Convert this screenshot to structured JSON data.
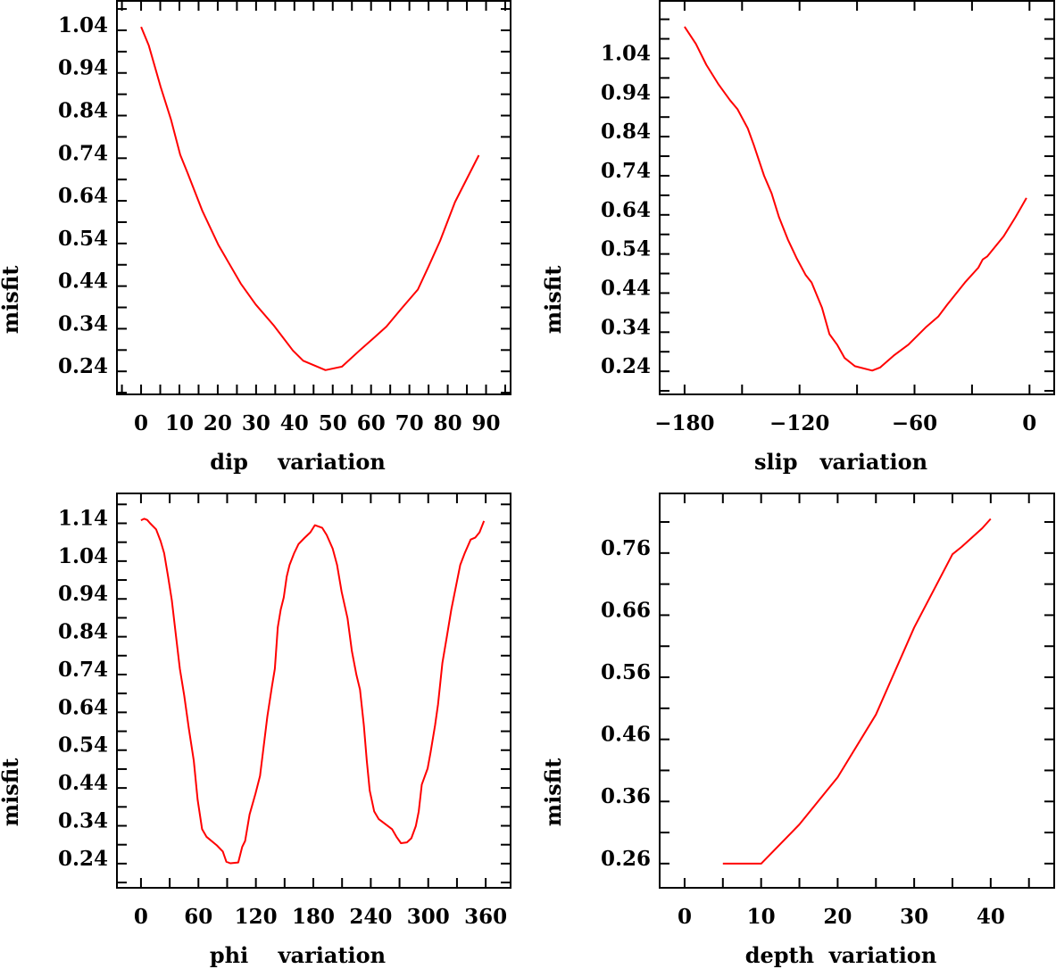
{
  "line_color": "#ff0000",
  "chart_data": [
    {
      "type": "line",
      "title": "",
      "xlabel": "dip    variation",
      "ylabel": "misfit",
      "xlim": [
        -6.3,
        96.4
      ],
      "ylim": [
        0.186,
        1.109
      ],
      "xticks": [
        0,
        10,
        20,
        30,
        40,
        50,
        60,
        70,
        80,
        90
      ],
      "xticklabels": [
        "0",
        "10",
        "20",
        "30",
        "40",
        "50",
        "60",
        "70",
        "80",
        "90"
      ],
      "xminor_step": 5,
      "yticks": [
        1.04,
        0.94,
        0.84,
        0.74,
        0.64,
        0.54,
        0.44,
        0.34,
        0.24
      ],
      "yticklabels": [
        "1.04",
        "0.94",
        "0.84",
        "0.74",
        "0.64",
        "0.54",
        "0.44",
        "0.34",
        "0.24"
      ],
      "yminor_step": 0.05,
      "grid": false,
      "x": [
        0,
        2,
        5.1,
        7.8,
        10.2,
        12.1,
        16,
        20.2,
        26,
        29.9,
        34.6,
        39.6,
        42.3,
        48.1,
        52.4,
        57,
        60.9,
        64,
        67.9,
        72.2,
        74.9,
        78,
        81.9,
        88.1
      ],
      "y": [
        1.048,
        1.005,
        0.907,
        0.831,
        0.748,
        0.706,
        0.616,
        0.536,
        0.446,
        0.397,
        0.348,
        0.289,
        0.265,
        0.243,
        0.251,
        0.289,
        0.32,
        0.345,
        0.387,
        0.432,
        0.484,
        0.546,
        0.637,
        0.747
      ]
    },
    {
      "type": "line",
      "title": "",
      "xlabel": "slip   variation",
      "ylabel": "misfit",
      "xlim": [
        -193,
        12.9
      ],
      "ylim": [
        0.181,
        1.187
      ],
      "xticks": [
        -180,
        -120,
        -60,
        0
      ],
      "xticklabels": [
        "−180",
        "−120",
        "−60",
        "0"
      ],
      "xminor_step": 30,
      "yticks": [
        1.04,
        0.94,
        0.84,
        0.74,
        0.64,
        0.54,
        0.44,
        0.34,
        0.24
      ],
      "yticklabels": [
        "1.04",
        "0.94",
        "0.84",
        "0.74",
        "0.64",
        "0.54",
        "0.44",
        "0.34",
        "0.24"
      ],
      "yminor_step": 0.05,
      "grid": false,
      "x": [
        -180,
        -174.1,
        -168.7,
        -162.5,
        -156.3,
        -152.4,
        -147,
        -143.9,
        -138.5,
        -134.6,
        -130.7,
        -126.1,
        -121.4,
        -116.8,
        -113.7,
        -108.3,
        -104.4,
        -100.4,
        -96.5,
        -91.1,
        -82.1,
        -77.9,
        -70.9,
        -63.2,
        -53.8,
        -47.6,
        -43,
        -33.7,
        -26.7,
        -24.4,
        -22,
        -13.5,
        -7.3,
        -1.6
      ],
      "y": [
        1.121,
        1.077,
        1.024,
        0.975,
        0.933,
        0.91,
        0.861,
        0.819,
        0.74,
        0.695,
        0.634,
        0.577,
        0.528,
        0.486,
        0.467,
        0.403,
        0.335,
        0.308,
        0.274,
        0.253,
        0.242,
        0.25,
        0.28,
        0.308,
        0.354,
        0.38,
        0.41,
        0.467,
        0.505,
        0.526,
        0.534,
        0.585,
        0.634,
        0.683
      ]
    },
    {
      "type": "line",
      "title": "",
      "xlabel": "phi    variation",
      "ylabel": "misfit",
      "xlim": [
        -25.1,
        386
      ],
      "ylim": [
        0.176,
        1.219
      ],
      "xticks": [
        0,
        60,
        120,
        180,
        240,
        300,
        360
      ],
      "xticklabels": [
        "0",
        "60",
        "120",
        "180",
        "240",
        "300",
        "360"
      ],
      "xminor_step": 30,
      "yticks": [
        1.14,
        1.04,
        0.94,
        0.84,
        0.74,
        0.64,
        0.54,
        0.44,
        0.34,
        0.24
      ],
      "yticklabels": [
        "1.14",
        "1.04",
        "0.94",
        "0.84",
        "0.74",
        "0.64",
        "0.54",
        "0.44",
        "0.34",
        "0.24"
      ],
      "yminor_step": 0.05,
      "grid": false,
      "x": [
        0,
        3.4,
        6.5,
        9.6,
        15.8,
        20.5,
        24.2,
        28.3,
        32.2,
        35.9,
        40.6,
        45.2,
        49.9,
        55.2,
        59.2,
        63.8,
        68.4,
        79.3,
        85.5,
        89.2,
        93.3,
        101.6,
        105.7,
        108.8,
        113.4,
        119.6,
        124.3,
        127.4,
        132,
        136.7,
        139.8,
        142.9,
        146,
        149.1,
        152.2,
        155.2,
        159.9,
        164.5,
        170.7,
        176.9,
        181.6,
        189.3,
        194,
        200.2,
        204.8,
        209.5,
        215.7,
        220.3,
        225,
        228.7,
        232.7,
        235.8,
        238.9,
        243.6,
        248.2,
        256,
        262.2,
        266.8,
        271.5,
        277.7,
        282.3,
        287,
        290.1,
        293.2,
        299.4,
        302.5,
        307.1,
        310.2,
        314.8,
        319.5,
        324.1,
        327.2,
        333.4,
        338.1,
        344.3,
        349,
        353.6,
        358.2
      ],
      "y": [
        1.148,
        1.152,
        1.149,
        1.14,
        1.124,
        1.093,
        1.061,
        0.999,
        0.936,
        0.857,
        0.755,
        0.684,
        0.598,
        0.512,
        0.409,
        0.331,
        0.311,
        0.288,
        0.272,
        0.245,
        0.241,
        0.243,
        0.284,
        0.3,
        0.37,
        0.425,
        0.472,
        0.535,
        0.629,
        0.708,
        0.755,
        0.865,
        0.912,
        0.944,
        0.999,
        1.03,
        1.061,
        1.085,
        1.101,
        1.116,
        1.135,
        1.128,
        1.109,
        1.073,
        1.03,
        0.959,
        0.889,
        0.802,
        0.739,
        0.7,
        0.606,
        0.512,
        0.433,
        0.378,
        0.358,
        0.343,
        0.331,
        0.311,
        0.294,
        0.296,
        0.307,
        0.339,
        0.378,
        0.449,
        0.492,
        0.535,
        0.606,
        0.661,
        0.771,
        0.842,
        0.912,
        0.951,
        1.03,
        1.061,
        1.097,
        1.102,
        1.116,
        1.146
      ]
    },
    {
      "type": "line",
      "title": "",
      "xlabel": "depth  variation",
      "ylabel": "misfit",
      "xlim": [
        -3.26,
        48.3
      ],
      "ylim": [
        0.221,
        0.856
      ],
      "xticks": [
        0,
        10,
        20,
        30,
        40
      ],
      "xticklabels": [
        "0",
        "10",
        "20",
        "30",
        "40"
      ],
      "xminor_step": 5,
      "yticks": [
        0.76,
        0.66,
        0.56,
        0.46,
        0.36,
        0.26
      ],
      "yticklabels": [
        "0.76",
        "0.66",
        "0.56",
        "0.46",
        "0.36",
        "0.26"
      ],
      "yminor_step": 0.05,
      "grid": false,
      "x": [
        5,
        10,
        15,
        20,
        25,
        30,
        35,
        36.2,
        38.9,
        40
      ],
      "y": [
        0.26,
        0.26,
        0.323,
        0.399,
        0.5,
        0.64,
        0.758,
        0.77,
        0.8,
        0.815
      ]
    }
  ]
}
